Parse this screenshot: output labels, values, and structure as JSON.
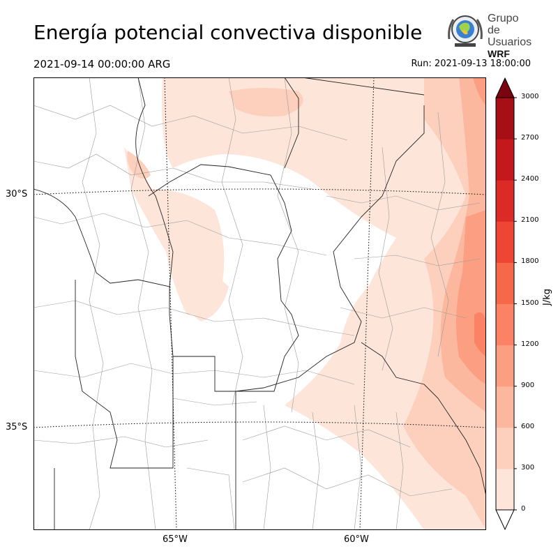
{
  "title": "Energía potencial convectiva disponible",
  "valid_time": "2021-09-14 00:00:00 ARG",
  "run_time": "Run: 2021-09-13 18:00:00",
  "logo": {
    "line1": "Grupo de",
    "line2": "Usuarios",
    "line3": "WRF",
    "icon": "globe-seal-icon"
  },
  "latitude_labels": [
    "30°S",
    "35°S"
  ],
  "longitude_labels": [
    "65°W",
    "60°W"
  ],
  "colorbar": {
    "unit": "J/kg",
    "ticks": [
      "3000",
      "2700",
      "2400",
      "2100",
      "1800",
      "1500",
      "1200",
      "900",
      "600",
      "300",
      "0"
    ],
    "colors": [
      "#fee5d9",
      "#fcd0bd",
      "#fcb89f",
      "#fc9e82",
      "#fb8265",
      "#f66849",
      "#ef4535",
      "#dc2b26",
      "#c4181c",
      "#a50f15",
      "#7a0510"
    ],
    "extend": "max"
  }
}
